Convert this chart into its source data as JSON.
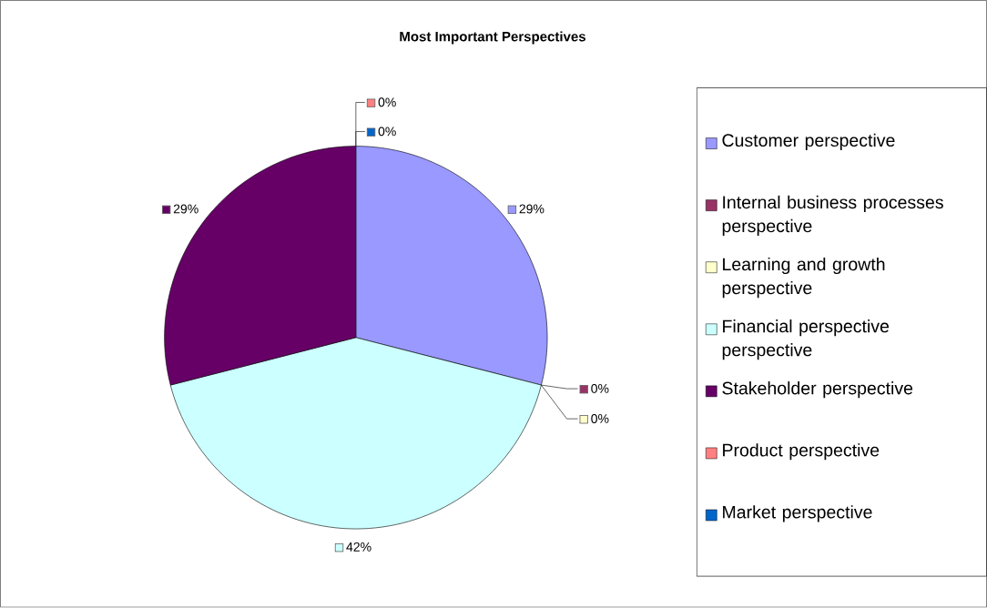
{
  "chart_data": {
    "type": "pie",
    "title": "Most Important Perspectives",
    "categories": [
      "Customer perspective",
      "Internal business processes perspective",
      "Learning and growth perspective",
      "Financial perspective perspective",
      "Stakeholder perspective",
      "Product perspective",
      "Market perspective"
    ],
    "values": [
      29,
      0,
      0,
      42,
      29,
      0,
      0
    ],
    "value_labels": [
      "29%",
      "0%",
      "0%",
      "42%",
      "29%",
      "0%",
      "0%"
    ],
    "colors": [
      "#9999ff",
      "#993366",
      "#ffffcc",
      "#ccffff",
      "#660066",
      "#ff8080",
      "#0066cc"
    ],
    "legend": "right"
  }
}
